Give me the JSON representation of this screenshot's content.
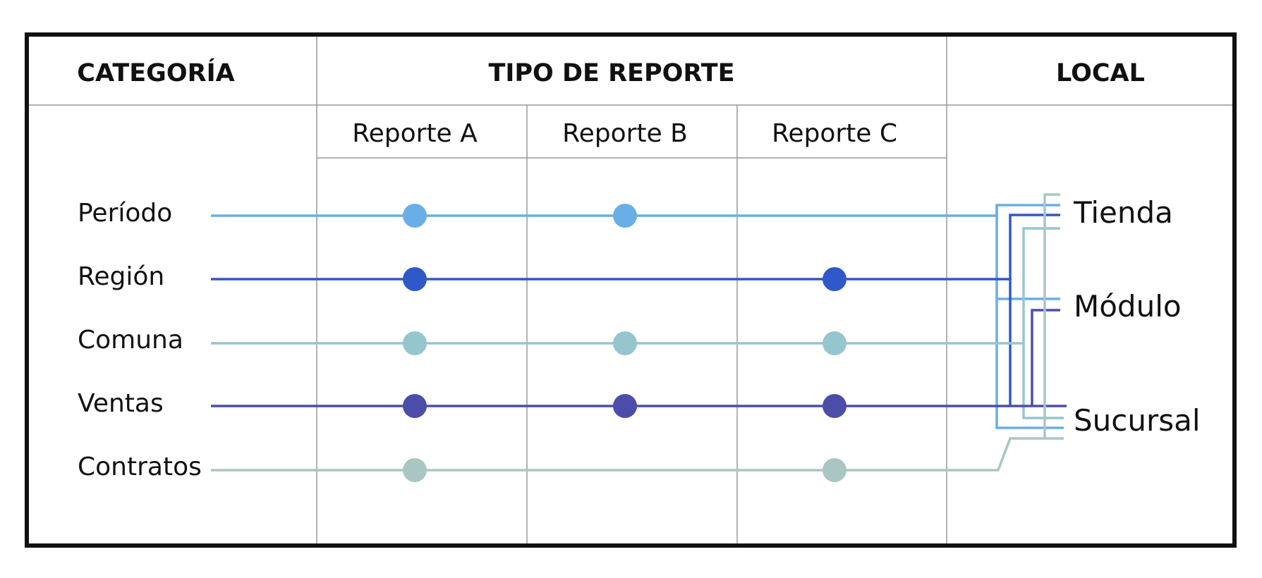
{
  "headers": {
    "category": "CATEGORÍA",
    "report_type": "TIPO DE REPORTE",
    "local": "LOCAL"
  },
  "reports": [
    "Reporte A",
    "Reporte B",
    "Reporte C"
  ],
  "categories": [
    {
      "label": "Período",
      "color": "#6aaee6",
      "reports": [
        "Reporte A",
        "Reporte B"
      ]
    },
    {
      "label": "Región",
      "color": "#2f58c8",
      "reports": [
        "Reporte A",
        "Reporte C"
      ]
    },
    {
      "label": "Comuna",
      "color": "#95c6cd",
      "reports": [
        "Reporte A",
        "Reporte B",
        "Reporte C"
      ]
    },
    {
      "label": "Ventas",
      "color": "#4b4da8",
      "reports": [
        "Reporte A",
        "Reporte B",
        "Reporte C"
      ]
    },
    {
      "label": "Contratos",
      "color": "#a9c6c3",
      "reports": [
        "Reporte A",
        "Reporte C"
      ]
    }
  ],
  "locals": [
    "Tienda",
    "Módulo",
    "Sucursal"
  ],
  "colors": {
    "border": "#111111",
    "grid": "#999999",
    "text": "#111111"
  }
}
